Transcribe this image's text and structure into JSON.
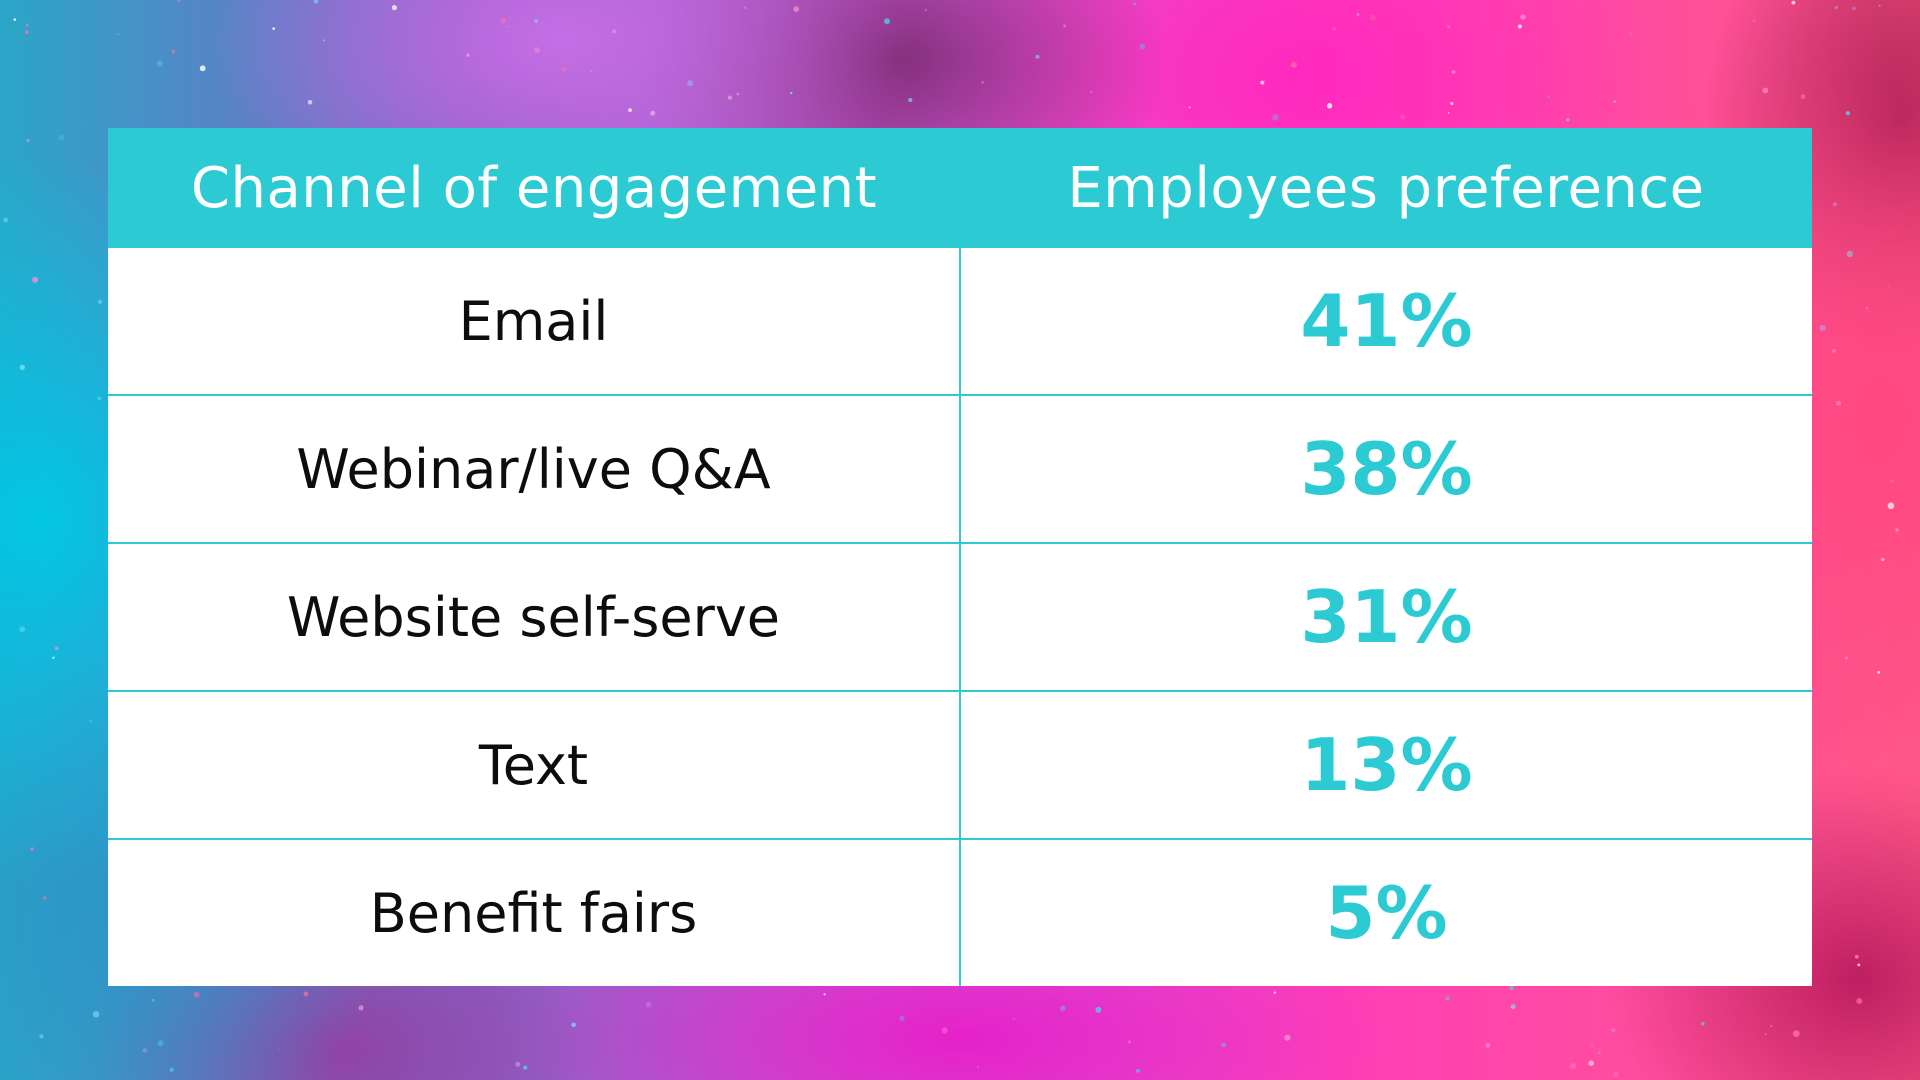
{
  "colors": {
    "accent": "#2ccbd4",
    "header_text": "#ffffff",
    "body_text": "#0d0d0d"
  },
  "chart_data": {
    "type": "table",
    "columns": [
      "Channel of engagement",
      "Employees preference"
    ],
    "rows": [
      {
        "channel": "Email",
        "preference": "41%"
      },
      {
        "channel": "Webinar/live Q&A",
        "preference": "38%"
      },
      {
        "channel": "Website self-serve",
        "preference": "31%"
      },
      {
        "channel": "Text",
        "preference": "13%"
      },
      {
        "channel": "Benefit fairs",
        "preference": "5%"
      }
    ]
  }
}
